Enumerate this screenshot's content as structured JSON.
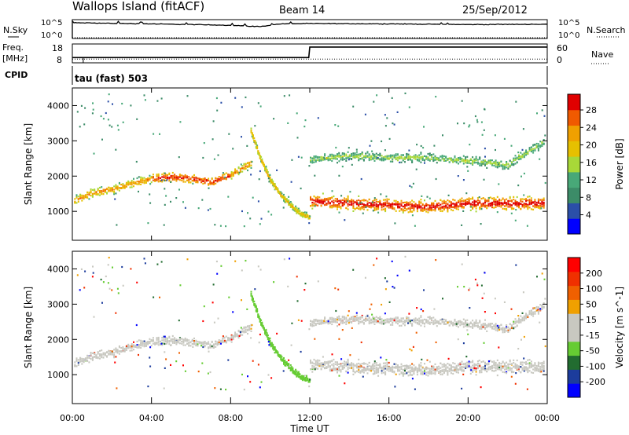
{
  "header": {
    "title": "Wallops Island (fitACF)",
    "beam": "Beam 14",
    "date": "25/Sep/2012"
  },
  "strip": {
    "nsky_label": "N.Sky",
    "nsky_top_tick": "10^5",
    "nsky_bottom_tick": "10^0",
    "nsearch_label": "N.Search",
    "nsearch_top_tick": "10^5",
    "nsearch_bottom_tick": "10^0",
    "freq_label": "Freq.",
    "freq_unit": "[MHz]",
    "freq_top_tick": "18",
    "freq_bottom_tick": "8",
    "nave_label": "Nave",
    "nave_top_tick": "60",
    "nave_bottom_tick": "0",
    "cpid_label": "CPID",
    "cpid_value": "tau (fast) 503"
  },
  "colors": {
    "power_scale": [
      "#0000ff",
      "#2b4fa8",
      "#3c8c68",
      "#48a878",
      "#a8d838",
      "#e6c000",
      "#f0a000",
      "#f05a00",
      "#e00000"
    ],
    "velocity_scale": [
      "#0000ff",
      "#1c3c9c",
      "#226c30",
      "#66cc33",
      "#c8c8c0",
      "#c8c8c0",
      "#f0a000",
      "#f06000",
      "#f03000",
      "#ff0000"
    ],
    "scatter_gray": "#c8c8c0"
  },
  "chart_data": [
    {
      "type": "heatmap",
      "title": "",
      "ylabel": "Slant Range [km]",
      "ylim": [
        180,
        4500
      ],
      "yticks": [
        "1000",
        "2000",
        "3000",
        "4000"
      ],
      "xlim": [
        0,
        24
      ],
      "colorbar": {
        "label": "Power [dB]",
        "ticks": [
          "4",
          "8",
          "12",
          "16",
          "20",
          "24",
          "28"
        ],
        "range": [
          0,
          30
        ]
      },
      "features": [
        {
          "name": "lower band (00-09 UT)",
          "t": [
            0,
            1,
            2,
            3,
            4,
            5,
            6,
            7,
            8,
            9
          ],
          "range_km": [
            1300,
            1550,
            1650,
            1800,
            1950,
            2000,
            1950,
            1850,
            2050,
            2400
          ]
        },
        {
          "name": "dispersing echo (09-12 UT)",
          "t": [
            9.0,
            9.5,
            10.0,
            10.5,
            11.0,
            11.5,
            12.0
          ],
          "range_km": [
            3300,
            2500,
            1900,
            1500,
            1200,
            950,
            850
          ]
        },
        {
          "name": "strong band (12-24 UT)",
          "t": [
            12,
            14,
            16,
            18,
            20,
            22,
            23.8
          ],
          "range_km": [
            1300,
            1250,
            1200,
            1150,
            1250,
            1250,
            1250
          ]
        },
        {
          "name": "upper band (12-24 UT)",
          "t": [
            12,
            14,
            16,
            18,
            20,
            22,
            23.8
          ],
          "range_km": [
            2500,
            2600,
            2550,
            2550,
            2450,
            2350,
            3000
          ]
        }
      ]
    },
    {
      "type": "heatmap",
      "title": "",
      "ylabel": "Slant Range [km]",
      "xlabel": "Time UT",
      "ylim": [
        180,
        4500
      ],
      "yticks": [
        "1000",
        "2000",
        "3000",
        "4000"
      ],
      "xlim": [
        0,
        24
      ],
      "xticks": [
        "00:00",
        "04:00",
        "08:00",
        "12:00",
        "16:00",
        "20:00",
        "00:00"
      ],
      "colorbar": {
        "label": "Velocity [m s^-1]",
        "ticks": [
          "200",
          "100",
          "50",
          "15",
          "-15",
          "-50",
          "-100",
          "-200"
        ],
        "range": [
          -250,
          250
        ]
      }
    },
    {
      "type": "line",
      "title": "",
      "series": [
        {
          "name": "N.Sky",
          "x": [
            0,
            0.3,
            4,
            8,
            9.5,
            10.5,
            12,
            16,
            20,
            24
          ],
          "log10": [
            4.3,
            4.3,
            4.0,
            3.6,
            3.2,
            4.0,
            4.1,
            4.0,
            3.8,
            3.9
          ]
        },
        {
          "name": "Freq.",
          "x": [
            0,
            11.95,
            12.0,
            24
          ],
          "mhz": [
            10.6,
            10.6,
            16.7,
            16.7
          ]
        },
        {
          "name": "Nave",
          "x": [
            0,
            24
          ],
          "count": [
            10,
            10
          ]
        }
      ]
    }
  ]
}
